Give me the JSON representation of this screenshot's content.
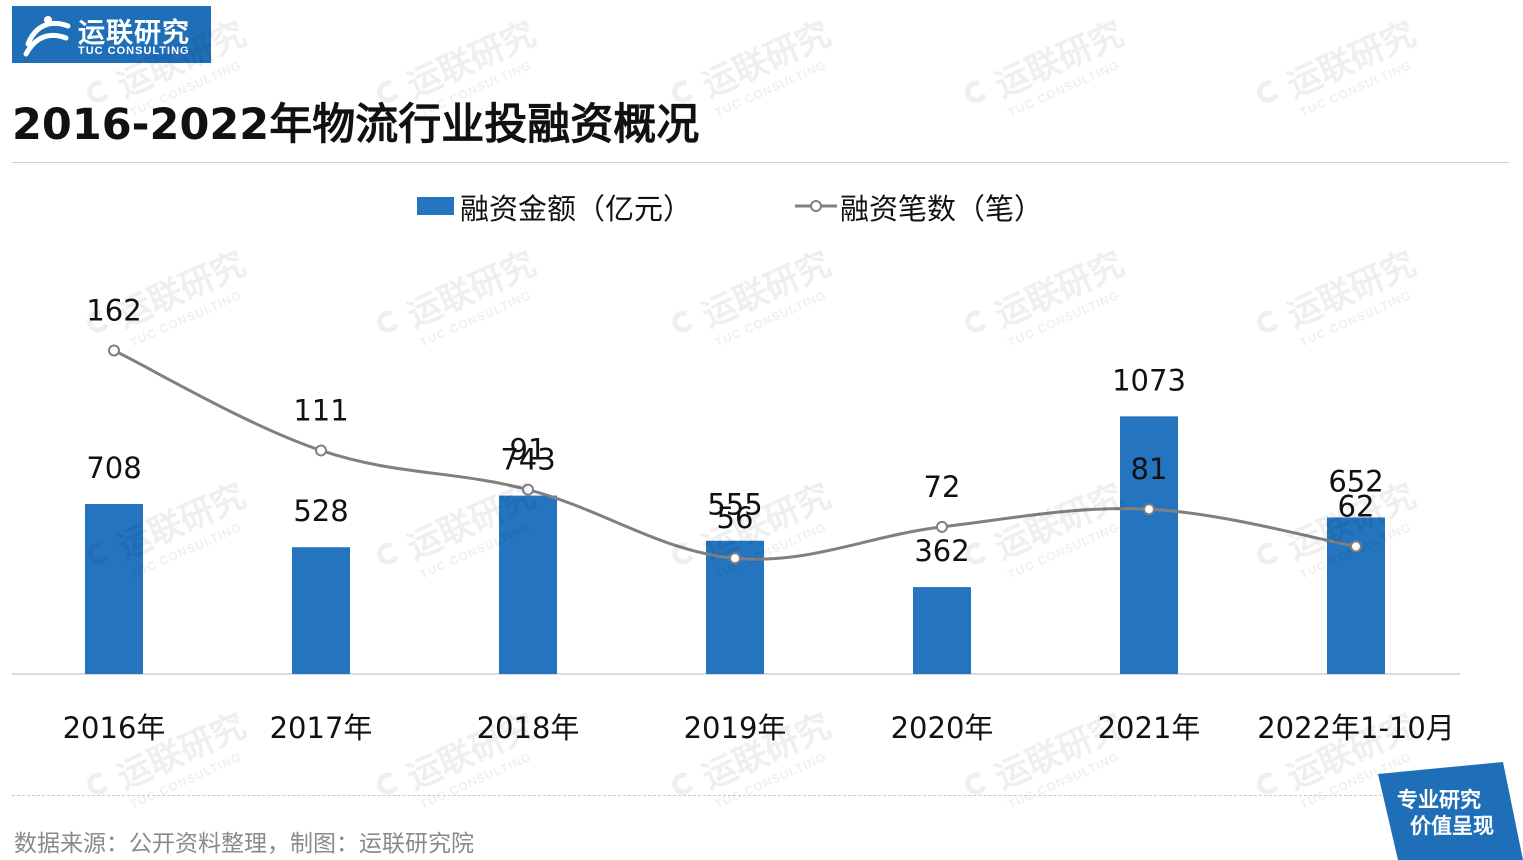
{
  "logo": {
    "brand_cn": "运联研究",
    "brand_en": "TUC CONSULTING",
    "color": "#1f6fb8"
  },
  "title": "2016-2022年物流行业投融资概况",
  "legend": {
    "bar_label": "融资金额（亿元）",
    "line_label": "融资笔数（笔）"
  },
  "chart_data": {
    "type": "bar",
    "categories": [
      "2016年",
      "2017年",
      "2018年",
      "2019年",
      "2020年",
      "2021年",
      "2022年1-10月"
    ],
    "series": [
      {
        "name": "融资金额（亿元）",
        "type": "bar",
        "color": "#2474bf",
        "values": [
          708,
          528,
          743,
          555,
          362,
          1073,
          652
        ]
      },
      {
        "name": "融资笔数（笔）",
        "type": "line",
        "color": "#808080",
        "values": [
          162,
          111,
          91,
          56,
          72,
          81,
          62
        ]
      }
    ],
    "grid": false,
    "legend_position": "top-center"
  },
  "footer": {
    "source": "数据来源：公开资料整理，制图：运联研究院"
  },
  "badge": {
    "line1": "专业研究",
    "line2": "价值呈现",
    "color": "#1f6fb8"
  }
}
